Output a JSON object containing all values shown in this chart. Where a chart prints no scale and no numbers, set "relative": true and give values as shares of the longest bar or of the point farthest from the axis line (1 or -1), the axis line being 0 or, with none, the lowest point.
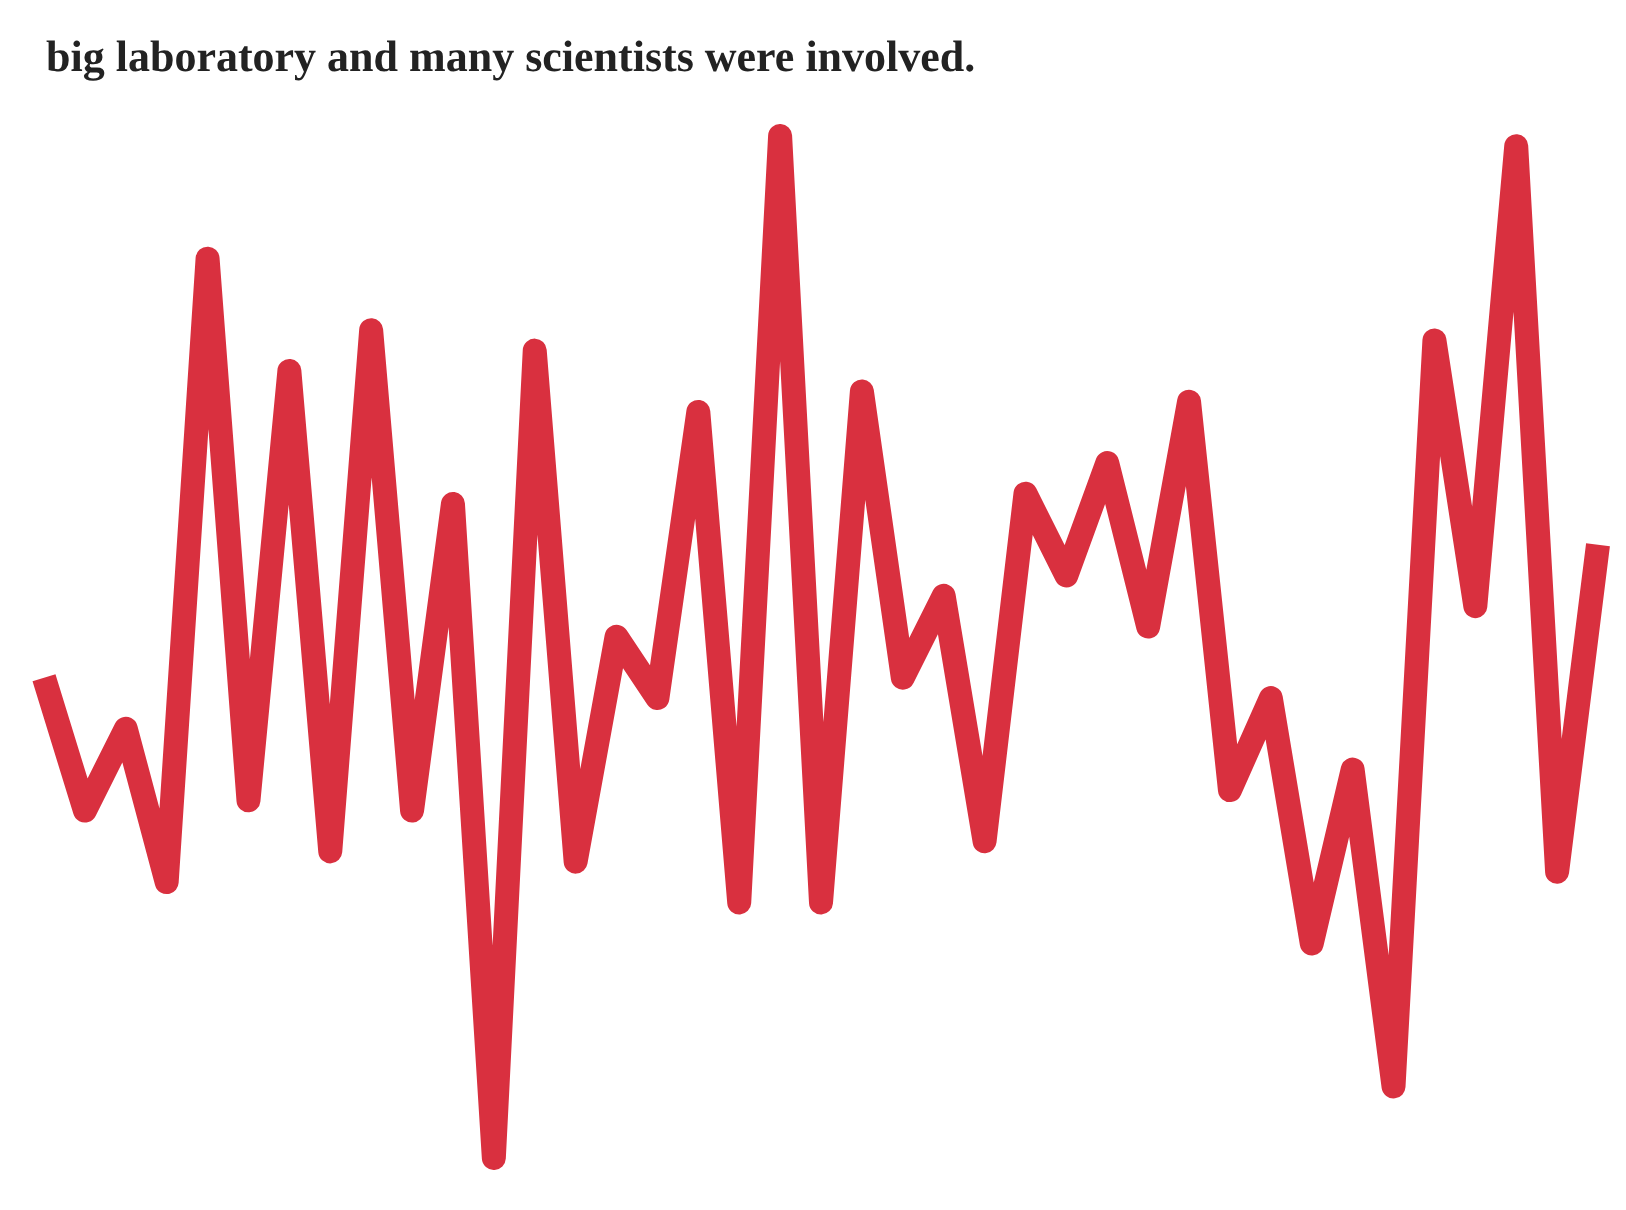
{
  "chart_data": {
    "type": "line",
    "title": "big laboratory and many scientists were involved.",
    "relative": true,
    "grid": false,
    "marker": "none",
    "categories": [
      null,
      null,
      null,
      null,
      null,
      null,
      null,
      null,
      null,
      null,
      null,
      null,
      null,
      null,
      null,
      null,
      null,
      null,
      null,
      null,
      null,
      null,
      null,
      null,
      null,
      null,
      null,
      null,
      null,
      null,
      null,
      null,
      null,
      null,
      null,
      null,
      null,
      null,
      null
    ],
    "series": [
      {
        "color": "#d9303f",
        "values": [
          0.47,
          0.34,
          0.42,
          0.27,
          0.88,
          0.35,
          0.77,
          0.3,
          0.81,
          0.34,
          0.64,
          0,
          0.79,
          0.29,
          0.51,
          0.45,
          0.73,
          0.25,
          1,
          0.25,
          0.75,
          0.47,
          0.55,
          0.31,
          0.65,
          0.57,
          0.68,
          0.52,
          0.74,
          0.36,
          0.45,
          0.21,
          0.38,
          0.07,
          0.8,
          0.54,
          0.99,
          0.28,
          0.6
        ]
      }
    ]
  }
}
